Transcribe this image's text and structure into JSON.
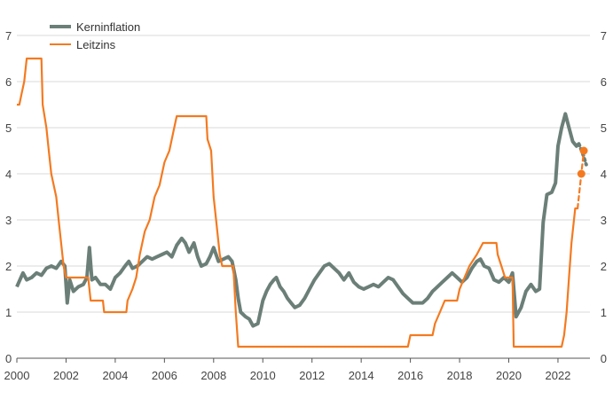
{
  "chart_data": {
    "type": "line",
    "title": "",
    "xlabel": "",
    "ylabel": "",
    "xlim": [
      2000,
      2023.3
    ],
    "ylim": [
      0,
      7
    ],
    "x_ticks": [
      "2000",
      "2002",
      "2004",
      "2006",
      "2008",
      "2010",
      "2012",
      "2014",
      "2016",
      "2018",
      "2020",
      "2022"
    ],
    "y_ticks": [
      "0",
      "1",
      "2",
      "3",
      "4",
      "5",
      "6",
      "7"
    ],
    "grid": true,
    "legend_position": "top-left",
    "series": [
      {
        "name": "Kerninflation",
        "color": "#6b7f78",
        "points": [
          [
            2000.0,
            1.55
          ],
          [
            2000.25,
            1.85
          ],
          [
            2000.4,
            1.7
          ],
          [
            2000.6,
            1.75
          ],
          [
            2000.8,
            1.85
          ],
          [
            2001.0,
            1.8
          ],
          [
            2001.2,
            1.95
          ],
          [
            2001.4,
            2.0
          ],
          [
            2001.6,
            1.95
          ],
          [
            2001.8,
            2.1
          ],
          [
            2001.95,
            2.0
          ],
          [
            2002.05,
            1.2
          ],
          [
            2002.15,
            1.7
          ],
          [
            2002.3,
            1.45
          ],
          [
            2002.5,
            1.55
          ],
          [
            2002.7,
            1.6
          ],
          [
            2002.85,
            1.75
          ],
          [
            2002.95,
            2.4
          ],
          [
            2003.05,
            1.7
          ],
          [
            2003.2,
            1.75
          ],
          [
            2003.4,
            1.6
          ],
          [
            2003.6,
            1.6
          ],
          [
            2003.8,
            1.5
          ],
          [
            2004.0,
            1.75
          ],
          [
            2004.2,
            1.85
          ],
          [
            2004.4,
            2.0
          ],
          [
            2004.55,
            2.1
          ],
          [
            2004.7,
            1.95
          ],
          [
            2004.9,
            2.0
          ],
          [
            2005.1,
            2.1
          ],
          [
            2005.3,
            2.2
          ],
          [
            2005.5,
            2.15
          ],
          [
            2005.7,
            2.2
          ],
          [
            2005.9,
            2.25
          ],
          [
            2006.1,
            2.3
          ],
          [
            2006.3,
            2.2
          ],
          [
            2006.5,
            2.45
          ],
          [
            2006.7,
            2.6
          ],
          [
            2006.85,
            2.5
          ],
          [
            2007.0,
            2.3
          ],
          [
            2007.2,
            2.5
          ],
          [
            2007.35,
            2.2
          ],
          [
            2007.5,
            2.0
          ],
          [
            2007.7,
            2.05
          ],
          [
            2007.85,
            2.2
          ],
          [
            2008.0,
            2.4
          ],
          [
            2008.2,
            2.1
          ],
          [
            2008.4,
            2.15
          ],
          [
            2008.6,
            2.2
          ],
          [
            2008.75,
            2.1
          ],
          [
            2008.9,
            1.7
          ],
          [
            2009.0,
            1.3
          ],
          [
            2009.1,
            1.0
          ],
          [
            2009.3,
            0.9
          ],
          [
            2009.45,
            0.85
          ],
          [
            2009.6,
            0.7
          ],
          [
            2009.8,
            0.75
          ],
          [
            2009.9,
            1.0
          ],
          [
            2010.0,
            1.25
          ],
          [
            2010.15,
            1.45
          ],
          [
            2010.3,
            1.6
          ],
          [
            2010.45,
            1.7
          ],
          [
            2010.55,
            1.75
          ],
          [
            2010.7,
            1.55
          ],
          [
            2010.85,
            1.45
          ],
          [
            2011.0,
            1.3
          ],
          [
            2011.15,
            1.2
          ],
          [
            2011.3,
            1.1
          ],
          [
            2011.5,
            1.15
          ],
          [
            2011.7,
            1.3
          ],
          [
            2011.9,
            1.5
          ],
          [
            2012.1,
            1.7
          ],
          [
            2012.3,
            1.85
          ],
          [
            2012.5,
            2.0
          ],
          [
            2012.7,
            2.05
          ],
          [
            2012.9,
            1.95
          ],
          [
            2013.1,
            1.85
          ],
          [
            2013.3,
            1.7
          ],
          [
            2013.5,
            1.85
          ],
          [
            2013.7,
            1.65
          ],
          [
            2013.9,
            1.55
          ],
          [
            2014.1,
            1.5
          ],
          [
            2014.3,
            1.55
          ],
          [
            2014.5,
            1.6
          ],
          [
            2014.7,
            1.55
          ],
          [
            2014.9,
            1.65
          ],
          [
            2015.1,
            1.75
          ],
          [
            2015.3,
            1.7
          ],
          [
            2015.5,
            1.55
          ],
          [
            2015.7,
            1.4
          ],
          [
            2015.9,
            1.3
          ],
          [
            2016.1,
            1.2
          ],
          [
            2016.3,
            1.2
          ],
          [
            2016.5,
            1.2
          ],
          [
            2016.7,
            1.3
          ],
          [
            2016.9,
            1.45
          ],
          [
            2017.1,
            1.55
          ],
          [
            2017.3,
            1.65
          ],
          [
            2017.5,
            1.75
          ],
          [
            2017.7,
            1.85
          ],
          [
            2017.9,
            1.75
          ],
          [
            2018.1,
            1.65
          ],
          [
            2018.3,
            1.75
          ],
          [
            2018.5,
            1.95
          ],
          [
            2018.7,
            2.1
          ],
          [
            2018.85,
            2.15
          ],
          [
            2019.0,
            2.0
          ],
          [
            2019.2,
            1.95
          ],
          [
            2019.4,
            1.7
          ],
          [
            2019.6,
            1.65
          ],
          [
            2019.8,
            1.75
          ],
          [
            2020.0,
            1.65
          ],
          [
            2020.15,
            1.85
          ],
          [
            2020.3,
            0.9
          ],
          [
            2020.5,
            1.1
          ],
          [
            2020.7,
            1.45
          ],
          [
            2020.9,
            1.6
          ],
          [
            2021.1,
            1.45
          ],
          [
            2021.25,
            1.5
          ],
          [
            2021.4,
            2.95
          ],
          [
            2021.55,
            3.55
          ],
          [
            2021.75,
            3.6
          ],
          [
            2021.9,
            3.8
          ],
          [
            2022.0,
            4.6
          ],
          [
            2022.15,
            5.0
          ],
          [
            2022.3,
            5.3
          ],
          [
            2022.45,
            5.0
          ],
          [
            2022.6,
            4.7
          ],
          [
            2022.75,
            4.6
          ],
          [
            2022.85,
            4.65
          ]
        ],
        "projection": [
          [
            2022.85,
            4.65
          ],
          [
            2023.0,
            4.45
          ],
          [
            2023.15,
            4.2
          ]
        ]
      },
      {
        "name": "Leitzins",
        "color": "#f47a20",
        "points": [
          [
            2000.0,
            5.5
          ],
          [
            2000.1,
            5.5
          ],
          [
            2000.2,
            5.75
          ],
          [
            2000.3,
            6.0
          ],
          [
            2000.4,
            6.5
          ],
          [
            2001.0,
            6.5
          ],
          [
            2001.05,
            5.5
          ],
          [
            2001.2,
            5.0
          ],
          [
            2001.3,
            4.5
          ],
          [
            2001.4,
            4.0
          ],
          [
            2001.5,
            3.75
          ],
          [
            2001.6,
            3.5
          ],
          [
            2001.7,
            3.0
          ],
          [
            2001.8,
            2.5
          ],
          [
            2001.9,
            2.0
          ],
          [
            2002.0,
            1.75
          ],
          [
            2002.9,
            1.75
          ],
          [
            2003.0,
            1.25
          ],
          [
            2003.5,
            1.25
          ],
          [
            2003.55,
            1.0
          ],
          [
            2004.45,
            1.0
          ],
          [
            2004.5,
            1.25
          ],
          [
            2004.7,
            1.5
          ],
          [
            2004.85,
            1.75
          ],
          [
            2005.0,
            2.25
          ],
          [
            2005.2,
            2.75
          ],
          [
            2005.4,
            3.0
          ],
          [
            2005.6,
            3.5
          ],
          [
            2005.8,
            3.75
          ],
          [
            2006.0,
            4.25
          ],
          [
            2006.2,
            4.5
          ],
          [
            2006.4,
            5.0
          ],
          [
            2006.5,
            5.25
          ],
          [
            2007.7,
            5.25
          ],
          [
            2007.75,
            4.75
          ],
          [
            2007.9,
            4.5
          ],
          [
            2008.0,
            3.5
          ],
          [
            2008.1,
            3.0
          ],
          [
            2008.25,
            2.25
          ],
          [
            2008.35,
            2.0
          ],
          [
            2008.8,
            2.0
          ],
          [
            2008.9,
            1.0
          ],
          [
            2009.0,
            0.25
          ],
          [
            2015.9,
            0.25
          ],
          [
            2016.0,
            0.5
          ],
          [
            2016.9,
            0.5
          ],
          [
            2017.0,
            0.75
          ],
          [
            2017.2,
            1.0
          ],
          [
            2017.4,
            1.25
          ],
          [
            2017.9,
            1.25
          ],
          [
            2018.0,
            1.5
          ],
          [
            2018.2,
            1.75
          ],
          [
            2018.4,
            2.0
          ],
          [
            2018.7,
            2.25
          ],
          [
            2018.95,
            2.5
          ],
          [
            2019.5,
            2.5
          ],
          [
            2019.55,
            2.25
          ],
          [
            2019.7,
            2.0
          ],
          [
            2019.85,
            1.75
          ],
          [
            2020.15,
            1.75
          ],
          [
            2020.2,
            0.25
          ],
          [
            2022.15,
            0.25
          ],
          [
            2022.25,
            0.5
          ],
          [
            2022.35,
            1.0
          ],
          [
            2022.45,
            1.75
          ],
          [
            2022.55,
            2.5
          ],
          [
            2022.7,
            3.25
          ],
          [
            2022.8,
            3.25
          ]
        ],
        "projection": [
          [
            2022.8,
            3.25
          ],
          [
            2022.95,
            4.0
          ],
          [
            2023.05,
            4.5
          ]
        ],
        "projection_markers": [
          [
            2022.95,
            4.0
          ],
          [
            2023.05,
            4.5
          ]
        ]
      }
    ]
  }
}
